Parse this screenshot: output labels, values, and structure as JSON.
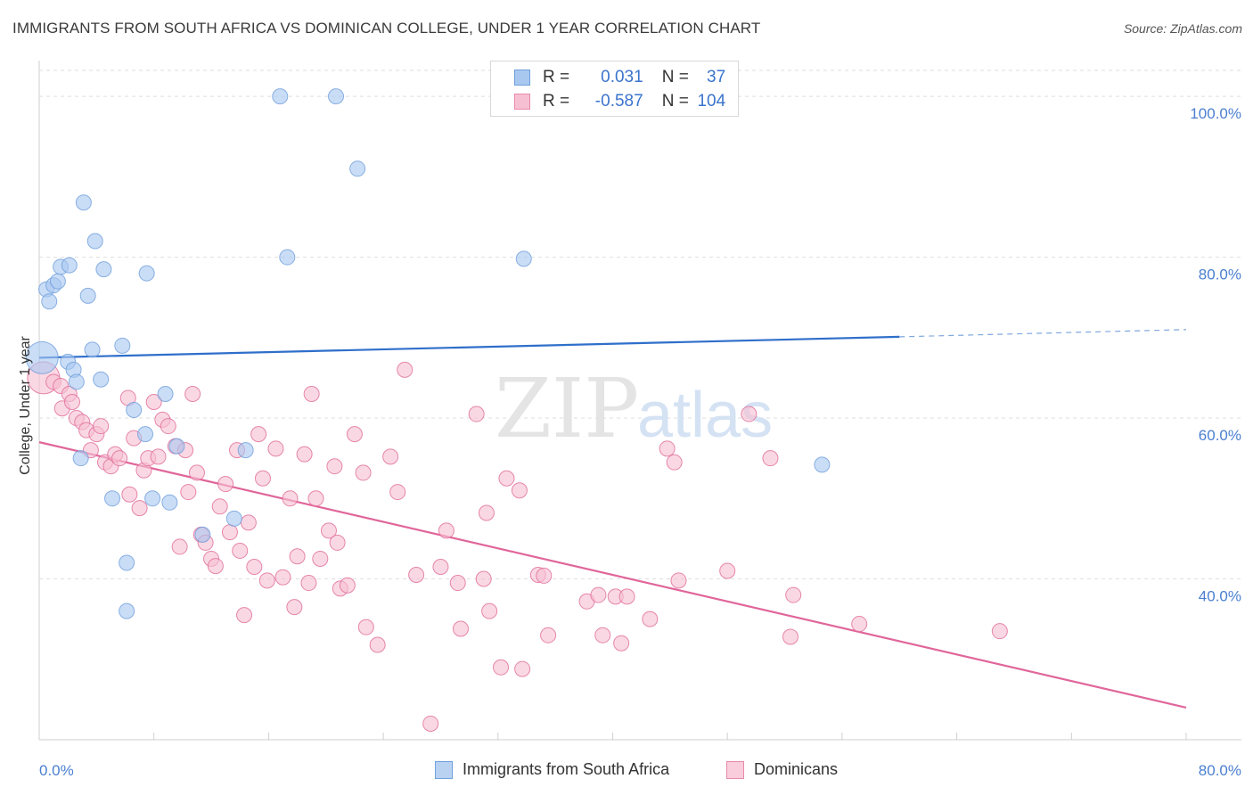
{
  "title": "IMMIGRANTS FROM SOUTH AFRICA VS DOMINICAN COLLEGE, UNDER 1 YEAR CORRELATION CHART",
  "source": "Source: ZipAtlas.com",
  "watermark": {
    "zip": "ZIP",
    "atlas": "atlas"
  },
  "legend": {
    "r_label": "R =",
    "n_label": "N =",
    "rows": [
      {
        "r": "0.031",
        "n": "37",
        "color": "#a9c8f0",
        "border": "#6f9fdc"
      },
      {
        "r": "-0.587",
        "n": "104",
        "color": "#f7c0d2",
        "border": "#e98aa9"
      }
    ]
  },
  "bottom_legend": [
    {
      "label": "Immigrants from South Africa",
      "color": "#b9d2f2",
      "border": "#6f9fdc"
    },
    {
      "label": "Dominicans",
      "color": "#f9cddb",
      "border": "#e98aa9"
    }
  ],
  "chart_data": {
    "type": "scatter",
    "title": "IMMIGRANTS FROM SOUTH AFRICA VS DOMINICAN COLLEGE, UNDER 1 YEAR CORRELATION CHART",
    "xlabel": "",
    "ylabel": "College, Under 1 year",
    "xlim": [
      0,
      80
    ],
    "ylim": [
      20,
      104
    ],
    "x_tick_labels": [
      "0.0%",
      "80.0%"
    ],
    "y_ticks": [
      40,
      60,
      80,
      100
    ],
    "y_tick_labels": [
      "40.0%",
      "60.0%",
      "80.0%",
      "100.0%"
    ],
    "grid": true,
    "series": [
      {
        "name": "Immigrants from South Africa",
        "color": "#6f9fdc",
        "fill": "#a9c8f0",
        "trend": {
          "x0": 0,
          "y0": 67.5,
          "x1": 60,
          "y1": 70.1,
          "dash_x1": 80,
          "dash_y1": 71.0
        },
        "points": [
          {
            "x": 0.2,
            "y": 67.5,
            "big": true
          },
          {
            "x": 0.5,
            "y": 76.0
          },
          {
            "x": 0.7,
            "y": 74.5
          },
          {
            "x": 1.0,
            "y": 76.5
          },
          {
            "x": 1.3,
            "y": 77.0
          },
          {
            "x": 1.5,
            "y": 78.8
          },
          {
            "x": 2.1,
            "y": 79.0
          },
          {
            "x": 2.0,
            "y": 67.0
          },
          {
            "x": 2.4,
            "y": 66.0
          },
          {
            "x": 2.6,
            "y": 64.5
          },
          {
            "x": 2.9,
            "y": 55.0
          },
          {
            "x": 3.1,
            "y": 86.8
          },
          {
            "x": 3.4,
            "y": 75.2
          },
          {
            "x": 3.7,
            "y": 68.5
          },
          {
            "x": 3.9,
            "y": 82.0
          },
          {
            "x": 4.3,
            "y": 64.8
          },
          {
            "x": 4.5,
            "y": 78.5
          },
          {
            "x": 5.1,
            "y": 50.0
          },
          {
            "x": 5.8,
            "y": 69.0
          },
          {
            "x": 6.1,
            "y": 42.0
          },
          {
            "x": 6.1,
            "y": 36.0
          },
          {
            "x": 6.6,
            "y": 61.0
          },
          {
            "x": 7.4,
            "y": 58.0
          },
          {
            "x": 7.5,
            "y": 78.0
          },
          {
            "x": 7.9,
            "y": 50.0
          },
          {
            "x": 8.8,
            "y": 63.0
          },
          {
            "x": 9.1,
            "y": 49.5
          },
          {
            "x": 9.6,
            "y": 56.5
          },
          {
            "x": 11.4,
            "y": 45.5
          },
          {
            "x": 13.6,
            "y": 47.5
          },
          {
            "x": 14.4,
            "y": 56.0
          },
          {
            "x": 16.8,
            "y": 100.0
          },
          {
            "x": 17.3,
            "y": 80.0
          },
          {
            "x": 20.7,
            "y": 100.0
          },
          {
            "x": 22.2,
            "y": 91.0
          },
          {
            "x": 33.8,
            "y": 79.8
          },
          {
            "x": 54.6,
            "y": 54.2
          }
        ]
      },
      {
        "name": "Dominicans",
        "color": "#e06b98",
        "fill": "#f7c0d2",
        "trend": {
          "x0": 0,
          "y0": 57.0,
          "x1": 80,
          "y1": 24.0
        },
        "points": [
          {
            "x": 0.3,
            "y": 65.0,
            "big": true
          },
          {
            "x": 1.0,
            "y": 64.5
          },
          {
            "x": 1.5,
            "y": 64.0
          },
          {
            "x": 1.6,
            "y": 61.2
          },
          {
            "x": 2.1,
            "y": 63.0
          },
          {
            "x": 2.3,
            "y": 62.0
          },
          {
            "x": 2.6,
            "y": 60.0
          },
          {
            "x": 3.0,
            "y": 59.5
          },
          {
            "x": 3.3,
            "y": 58.5
          },
          {
            "x": 3.6,
            "y": 56.0
          },
          {
            "x": 4.0,
            "y": 58.0
          },
          {
            "x": 4.3,
            "y": 59.0
          },
          {
            "x": 4.6,
            "y": 54.5
          },
          {
            "x": 5.0,
            "y": 54.0
          },
          {
            "x": 5.3,
            "y": 55.5
          },
          {
            "x": 5.6,
            "y": 55.0
          },
          {
            "x": 6.2,
            "y": 62.5
          },
          {
            "x": 6.3,
            "y": 50.5
          },
          {
            "x": 6.6,
            "y": 57.5
          },
          {
            "x": 7.0,
            "y": 48.8
          },
          {
            "x": 7.3,
            "y": 53.5
          },
          {
            "x": 7.6,
            "y": 55.0
          },
          {
            "x": 8.0,
            "y": 62.0
          },
          {
            "x": 8.3,
            "y": 55.2
          },
          {
            "x": 8.6,
            "y": 59.8
          },
          {
            "x": 9.0,
            "y": 59.0
          },
          {
            "x": 9.5,
            "y": 56.5
          },
          {
            "x": 9.8,
            "y": 44.0
          },
          {
            "x": 10.2,
            "y": 56.0
          },
          {
            "x": 10.4,
            "y": 50.8
          },
          {
            "x": 10.7,
            "y": 63.0
          },
          {
            "x": 11.0,
            "y": 53.2
          },
          {
            "x": 11.3,
            "y": 45.5
          },
          {
            "x": 11.6,
            "y": 44.5
          },
          {
            "x": 12.0,
            "y": 42.5
          },
          {
            "x": 12.3,
            "y": 41.6
          },
          {
            "x": 12.6,
            "y": 49.0
          },
          {
            "x": 13.0,
            "y": 51.8
          },
          {
            "x": 13.3,
            "y": 45.8
          },
          {
            "x": 13.8,
            "y": 56.0
          },
          {
            "x": 14.0,
            "y": 43.5
          },
          {
            "x": 14.3,
            "y": 35.5
          },
          {
            "x": 14.6,
            "y": 47.0
          },
          {
            "x": 15.0,
            "y": 41.5
          },
          {
            "x": 15.3,
            "y": 58.0
          },
          {
            "x": 15.6,
            "y": 52.5
          },
          {
            "x": 15.9,
            "y": 39.8
          },
          {
            "x": 16.5,
            "y": 56.2
          },
          {
            "x": 17.0,
            "y": 40.2
          },
          {
            "x": 17.5,
            "y": 50.0
          },
          {
            "x": 17.8,
            "y": 36.5
          },
          {
            "x": 18.0,
            "y": 42.8
          },
          {
            "x": 18.5,
            "y": 55.5
          },
          {
            "x": 18.8,
            "y": 39.5
          },
          {
            "x": 19.0,
            "y": 63.0
          },
          {
            "x": 19.3,
            "y": 50.0
          },
          {
            "x": 19.6,
            "y": 42.5
          },
          {
            "x": 20.2,
            "y": 46.0
          },
          {
            "x": 20.6,
            "y": 54.0
          },
          {
            "x": 20.8,
            "y": 44.5
          },
          {
            "x": 21.0,
            "y": 38.8
          },
          {
            "x": 21.5,
            "y": 39.2
          },
          {
            "x": 22.0,
            "y": 58.0
          },
          {
            "x": 22.6,
            "y": 53.2
          },
          {
            "x": 22.8,
            "y": 34.0
          },
          {
            "x": 23.6,
            "y": 31.8
          },
          {
            "x": 24.5,
            "y": 55.2
          },
          {
            "x": 25.0,
            "y": 50.8
          },
          {
            "x": 25.5,
            "y": 66.0
          },
          {
            "x": 26.3,
            "y": 40.5
          },
          {
            "x": 27.3,
            "y": 22.0
          },
          {
            "x": 28.0,
            "y": 41.5
          },
          {
            "x": 28.4,
            "y": 46.0
          },
          {
            "x": 29.2,
            "y": 39.5
          },
          {
            "x": 29.4,
            "y": 33.8
          },
          {
            "x": 30.5,
            "y": 60.5
          },
          {
            "x": 31.0,
            "y": 40.0
          },
          {
            "x": 31.2,
            "y": 48.2
          },
          {
            "x": 31.4,
            "y": 36.0
          },
          {
            "x": 32.2,
            "y": 29.0
          },
          {
            "x": 32.6,
            "y": 52.5
          },
          {
            "x": 33.5,
            "y": 51.0
          },
          {
            "x": 33.7,
            "y": 28.8
          },
          {
            "x": 34.8,
            "y": 40.5
          },
          {
            "x": 35.2,
            "y": 40.4
          },
          {
            "x": 35.5,
            "y": 33.0
          },
          {
            "x": 38.2,
            "y": 37.2
          },
          {
            "x": 39.0,
            "y": 38.0
          },
          {
            "x": 39.3,
            "y": 33.0
          },
          {
            "x": 40.2,
            "y": 37.8
          },
          {
            "x": 40.6,
            "y": 32.0
          },
          {
            "x": 41.0,
            "y": 37.8
          },
          {
            "x": 42.6,
            "y": 35.0
          },
          {
            "x": 43.8,
            "y": 56.2
          },
          {
            "x": 44.3,
            "y": 54.5
          },
          {
            "x": 44.6,
            "y": 39.8
          },
          {
            "x": 48.0,
            "y": 41.0
          },
          {
            "x": 49.5,
            "y": 60.5
          },
          {
            "x": 51.0,
            "y": 55.0
          },
          {
            "x": 52.4,
            "y": 32.8
          },
          {
            "x": 52.6,
            "y": 38.0
          },
          {
            "x": 57.2,
            "y": 34.4
          },
          {
            "x": 67.0,
            "y": 33.5
          }
        ]
      }
    ]
  }
}
